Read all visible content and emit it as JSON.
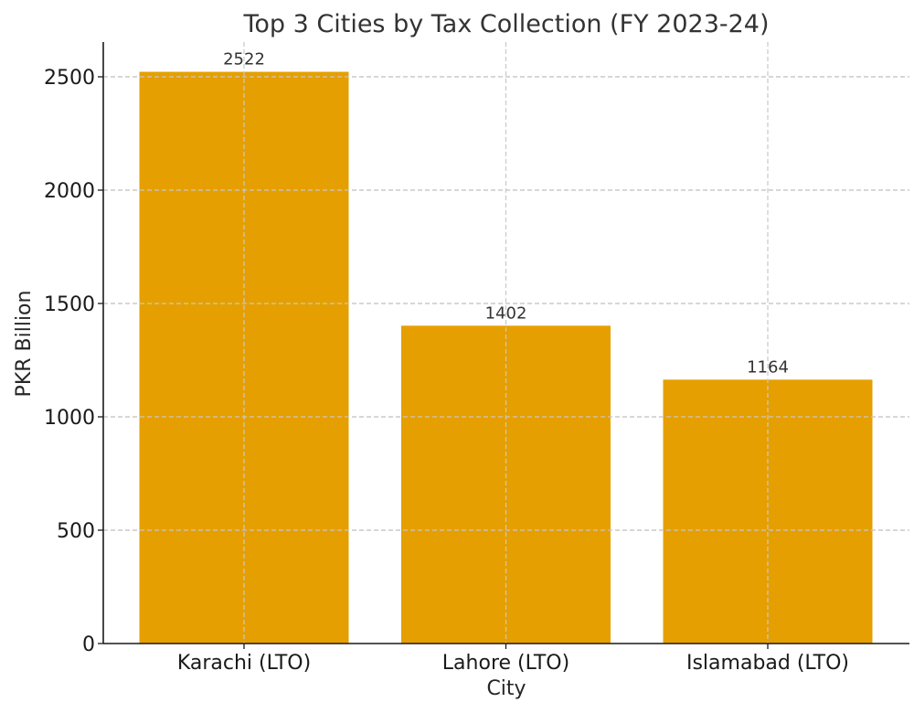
{
  "chart_data": {
    "type": "bar",
    "title": "Top 3 Cities by Tax Collection (FY 2023-24)",
    "xlabel": "City",
    "ylabel": "PKR Billion",
    "categories": [
      "Karachi (LTO)",
      "Lahore (LTO)",
      "Islamabad (LTO)"
    ],
    "values": [
      2522,
      1402,
      1164
    ],
    "data_labels": [
      "2522",
      "1402",
      "1164"
    ],
    "ylim": [
      0,
      2650
    ],
    "yticks": [
      0,
      500,
      1000,
      1500,
      2000,
      2500
    ],
    "grid": true,
    "grid_style": "dashed",
    "legend": null,
    "bar_color": "#E69F00"
  },
  "colors": {
    "bar": "#E69F00",
    "grid": "#c8c8c8",
    "axis": "#1a1a1a"
  }
}
